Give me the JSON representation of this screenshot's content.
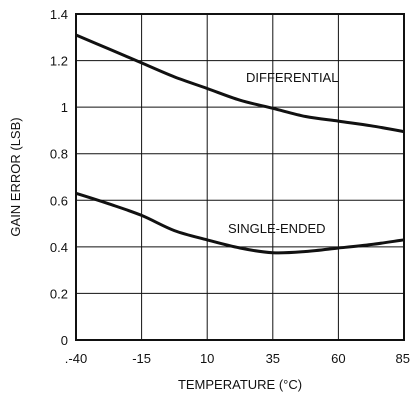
{
  "chart_data": {
    "type": "line",
    "xlabel": "TEMPERATURE (°C)",
    "ylabel": "GAIN ERROR (LSB)",
    "xlim": [
      -40,
      85
    ],
    "ylim": [
      0,
      1.4
    ],
    "x_ticks": [
      -40,
      -15,
      10,
      35,
      60,
      85
    ],
    "x_tick_labels": [
      ".-40",
      "-15",
      "10",
      "35",
      "60",
      "85"
    ],
    "y_ticks": [
      0,
      0.2,
      0.4,
      0.6,
      0.8,
      1.0,
      1.2,
      1.4
    ],
    "y_tick_labels": [
      "0",
      "0.2",
      "0.4",
      "0.6",
      "0.8",
      "1",
      "1.2",
      "1.4"
    ],
    "grid": true,
    "series": [
      {
        "name": "DIFFERENTIAL",
        "x": [
          -40,
          -27.5,
          -15,
          -2.5,
          10,
          22.5,
          35,
          47.5,
          60,
          72.5,
          85
        ],
        "y": [
          1.31,
          1.25,
          1.19,
          1.13,
          1.08,
          1.03,
          0.995,
          0.96,
          0.94,
          0.92,
          0.895
        ]
      },
      {
        "name": "SINGLE-ENDED",
        "x": [
          -40,
          -27.5,
          -15,
          -2.5,
          10,
          22.5,
          35,
          47.5,
          60,
          72.5,
          85
        ],
        "y": [
          0.63,
          0.585,
          0.535,
          0.47,
          0.43,
          0.395,
          0.375,
          0.38,
          0.395,
          0.41,
          0.43
        ]
      }
    ],
    "colors": {
      "line": "#111111",
      "grid": "#111111",
      "background": "#ffffff"
    }
  }
}
